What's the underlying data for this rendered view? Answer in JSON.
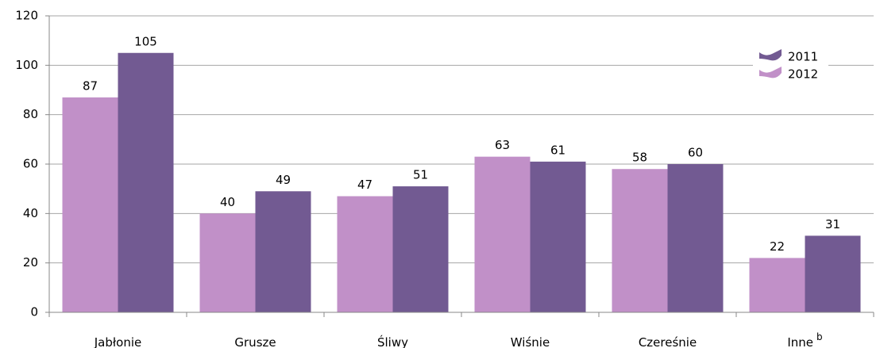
{
  "chart_data": {
    "type": "bar",
    "categories": [
      "Jabłonie",
      "Grusze",
      "Śliwy",
      "Wiśnie",
      "Czereśnie",
      "Inne"
    ],
    "footnote_marks": {
      "5": "b"
    },
    "series": [
      {
        "name": "2012",
        "color": "#c190c8",
        "values": [
          87,
          40,
          47,
          63,
          58,
          22
        ]
      },
      {
        "name": "2011",
        "color": "#725a92",
        "values": [
          105,
          49,
          51,
          61,
          60,
          31
        ]
      }
    ],
    "ylim": [
      0,
      120
    ],
    "yticks": [
      0,
      20,
      40,
      60,
      80,
      100,
      120
    ],
    "grid": true,
    "legend": "top-right"
  }
}
